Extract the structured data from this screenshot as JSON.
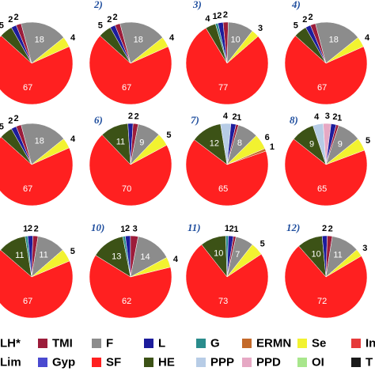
{
  "colors": {
    "LH*": "#a05a6a",
    "TMI": "#9c1c3a",
    "F": "#8c8c8c",
    "L": "#1c1c9c",
    "G": "#2a8c8c",
    "ERMN": "#c46a2a",
    "Se": "#f2f230",
    "Lim": "#2e5e2e",
    "Gyp": "#4a4ad0",
    "SF": "#ff2020",
    "HE": "#3c5216",
    "PPP": "#b7cce6",
    "PPD": "#e6a8c4",
    "OI": "#a8e68c"
  },
  "chart_data": [
    {
      "type": "pie",
      "title": "",
      "slices": [
        {
          "category": "SF",
          "value": 67,
          "label": "67"
        },
        {
          "category": "HE",
          "value": 5,
          "label": "5"
        },
        {
          "category": "L",
          "value": 2,
          "label": "2"
        },
        {
          "category": "TMI",
          "value": 2,
          "label": "2"
        },
        {
          "category": "F",
          "value": 18,
          "label": "18"
        },
        {
          "category": "Se",
          "value": 4,
          "label": "4"
        }
      ]
    },
    {
      "type": "pie",
      "title": "2)",
      "slices": [
        {
          "category": "SF",
          "value": 67,
          "label": "67"
        },
        {
          "category": "HE",
          "value": 5,
          "label": "5"
        },
        {
          "category": "L",
          "value": 2,
          "label": "2"
        },
        {
          "category": "TMI",
          "value": 2,
          "label": "2"
        },
        {
          "category": "F",
          "value": 18,
          "label": "18"
        },
        {
          "category": "Se",
          "value": 4,
          "label": "4"
        }
      ]
    },
    {
      "type": "pie",
      "title": "3)",
      "slices": [
        {
          "category": "SF",
          "value": 77,
          "label": "77"
        },
        {
          "category": "HE",
          "value": 4,
          "label": "4"
        },
        {
          "category": "G",
          "value": 1,
          "label": "1"
        },
        {
          "category": "L",
          "value": 2,
          "label": "2"
        },
        {
          "category": "TMI",
          "value": 2,
          "label": "2"
        },
        {
          "category": "F",
          "value": 10,
          "label": "10"
        },
        {
          "category": "Se",
          "value": 3,
          "label": "3"
        }
      ]
    },
    {
      "type": "pie",
      "title": "4)",
      "slices": [
        {
          "category": "SF",
          "value": 67,
          "label": "67"
        },
        {
          "category": "HE",
          "value": 5,
          "label": "5"
        },
        {
          "category": "L",
          "value": 2,
          "label": "2"
        },
        {
          "category": "TMI",
          "value": 2,
          "label": "2"
        },
        {
          "category": "F",
          "value": 18,
          "label": "18"
        },
        {
          "category": "Se",
          "value": 4,
          "label": "4"
        }
      ]
    },
    {
      "type": "pie",
      "title": "",
      "slices": [
        {
          "category": "SF",
          "value": 67,
          "label": "67"
        },
        {
          "category": "HE",
          "value": 5,
          "label": "5"
        },
        {
          "category": "L",
          "value": 2,
          "label": "2"
        },
        {
          "category": "TMI",
          "value": 2,
          "label": "2"
        },
        {
          "category": "F",
          "value": 18,
          "label": "18"
        },
        {
          "category": "Se",
          "value": 4,
          "label": "4"
        }
      ]
    },
    {
      "type": "pie",
      "title": "6)",
      "slices": [
        {
          "category": "SF",
          "value": 70,
          "label": "70"
        },
        {
          "category": "HE",
          "value": 11,
          "label": "11"
        },
        {
          "category": "L",
          "value": 2,
          "label": "2"
        },
        {
          "category": "TMI",
          "value": 2,
          "label": "2"
        },
        {
          "category": "F",
          "value": 9,
          "label": "9"
        },
        {
          "category": "Se",
          "value": 5,
          "label": "5"
        }
      ]
    },
    {
      "type": "pie",
      "title": "7)",
      "slices": [
        {
          "category": "SF",
          "value": 65,
          "label": "65"
        },
        {
          "category": "HE",
          "value": 12,
          "label": "12"
        },
        {
          "category": "PPP",
          "value": 4,
          "label": "4"
        },
        {
          "category": "L",
          "value": 2,
          "label": "2"
        },
        {
          "category": "TMI",
          "value": 1,
          "label": "1"
        },
        {
          "category": "F",
          "value": 8,
          "label": "8"
        },
        {
          "category": "Se",
          "value": 6,
          "label": "6"
        },
        {
          "category": "ERMN",
          "value": 1,
          "label": "1"
        }
      ]
    },
    {
      "type": "pie",
      "title": "8)",
      "slices": [
        {
          "category": "SF",
          "value": 65,
          "label": "65"
        },
        {
          "category": "HE",
          "value": 9,
          "label": "9"
        },
        {
          "category": "PPP",
          "value": 4,
          "label": "4"
        },
        {
          "category": "PPD",
          "value": 3,
          "label": "3"
        },
        {
          "category": "L",
          "value": 2,
          "label": "2"
        },
        {
          "category": "TMI",
          "value": 1,
          "label": "1"
        },
        {
          "category": "F",
          "value": 9,
          "label": "9"
        },
        {
          "category": "Se",
          "value": 5,
          "label": "5"
        }
      ]
    },
    {
      "type": "pie",
      "title": "",
      "slices": [
        {
          "category": "SF",
          "value": 67,
          "label": "67"
        },
        {
          "category": "HE",
          "value": 11,
          "label": "11"
        },
        {
          "category": "G",
          "value": 1,
          "label": "1"
        },
        {
          "category": "L",
          "value": 2,
          "label": "2"
        },
        {
          "category": "TMI",
          "value": 2,
          "label": "2"
        },
        {
          "category": "F",
          "value": 11,
          "label": "11"
        },
        {
          "category": "Se",
          "value": 5,
          "label": "5"
        }
      ]
    },
    {
      "type": "pie",
      "title": "10)",
      "slices": [
        {
          "category": "SF",
          "value": 62,
          "label": "62"
        },
        {
          "category": "HE",
          "value": 13,
          "label": "13"
        },
        {
          "category": "G",
          "value": 1,
          "label": "1"
        },
        {
          "category": "L",
          "value": 2,
          "label": "2"
        },
        {
          "category": "TMI",
          "value": 3,
          "label": "3"
        },
        {
          "category": "F",
          "value": 14,
          "label": "14"
        },
        {
          "category": "Se",
          "value": 4,
          "label": "4"
        }
      ]
    },
    {
      "type": "pie",
      "title": "11)",
      "slices": [
        {
          "category": "SF",
          "value": 73,
          "label": "73"
        },
        {
          "category": "HE",
          "value": 10,
          "label": "10"
        },
        {
          "category": "G",
          "value": 1,
          "label": "1"
        },
        {
          "category": "L",
          "value": 2,
          "label": "2"
        },
        {
          "category": "TMI",
          "value": 1,
          "label": "1"
        },
        {
          "category": "F",
          "value": 7,
          "label": "7"
        },
        {
          "category": "Se",
          "value": 5,
          "label": "5"
        }
      ]
    },
    {
      "type": "pie",
      "title": "12)",
      "slices": [
        {
          "category": "SF",
          "value": 72,
          "label": "72"
        },
        {
          "category": "HE",
          "value": 10,
          "label": "10"
        },
        {
          "category": "L",
          "value": 2,
          "label": "2"
        },
        {
          "category": "TMI",
          "value": 2,
          "label": "2"
        },
        {
          "category": "F",
          "value": 11,
          "label": "11"
        },
        {
          "category": "Se",
          "value": 3,
          "label": "3"
        }
      ]
    }
  ],
  "legend": {
    "row1": [
      {
        "key": "LH*",
        "label": "LH*"
      },
      {
        "key": "TMI",
        "label": "TMI"
      },
      {
        "key": "F",
        "label": "F"
      },
      {
        "key": "L",
        "label": "L"
      },
      {
        "key": "G",
        "label": "G"
      },
      {
        "key": "ERMN",
        "label": "ERMN"
      },
      {
        "key": "Se",
        "label": "Se"
      },
      {
        "key": "In",
        "label": "In"
      }
    ],
    "row2": [
      {
        "key": "Lim",
        "label": "Lim"
      },
      {
        "key": "Gyp",
        "label": "Gyp"
      },
      {
        "key": "SF",
        "label": "SF"
      },
      {
        "key": "HE",
        "label": "HE"
      },
      {
        "key": "PPP",
        "label": "PPP"
      },
      {
        "key": "PPD",
        "label": "PPD"
      },
      {
        "key": "OI",
        "label": "OI"
      },
      {
        "key": "T",
        "label": "T"
      }
    ]
  }
}
